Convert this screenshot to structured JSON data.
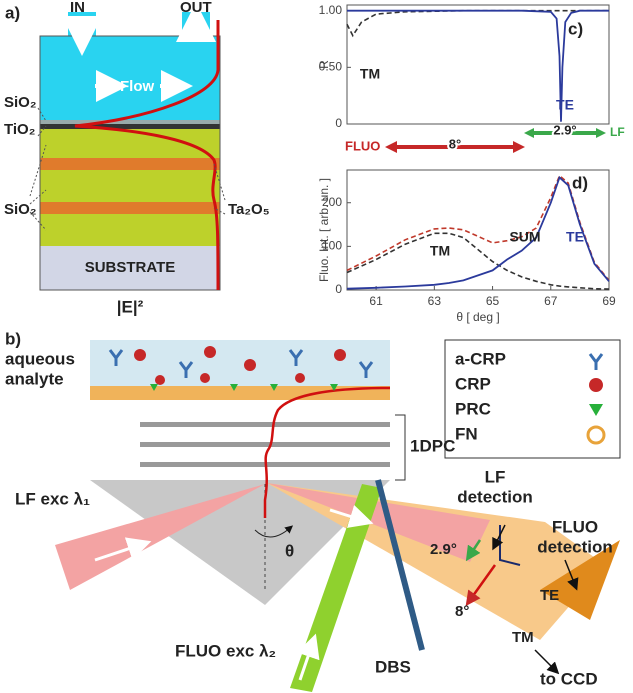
{
  "panel_a": {
    "label": "a)",
    "inlet": "IN",
    "outlet": "OUT",
    "flow": "Flow",
    "layers": {
      "top_sio2": "SiO₂",
      "tio2": "TiO₂",
      "sio2": "SiO₂",
      "ta2o5": "Ta₂O₅",
      "substrate": "SUBSTRATE"
    },
    "field": "|E|²"
  },
  "panel_b": {
    "label": "b)",
    "analyte": [
      "aqueous",
      "analyte"
    ],
    "crystal": "1DPC",
    "lf_exc": "LF exc λ₁",
    "fluo_exc": "FLUO exc λ₂",
    "angle": "θ",
    "dbs": "DBS",
    "lf_detection": [
      "LF",
      "detection"
    ],
    "fluo_detection": [
      "FLUO",
      "detection"
    ],
    "lf_angle": "2.9°",
    "fluo_angle": "8°",
    "te": "TE",
    "tm": "TM",
    "ccd": "to CCD",
    "legend": [
      "a-CRP",
      "CRP",
      "PRC",
      "FN"
    ]
  },
  "arrows": {
    "fluo": "FLUO",
    "fluo_angle": "8°",
    "lf_angle": "2.9°",
    "lf": "LF"
  },
  "chart_data": [
    {
      "type": "line",
      "label": "c)",
      "ylabel": "R",
      "x": [
        60,
        60.2,
        60.5,
        61,
        62,
        64,
        66,
        67,
        67.2,
        67.3,
        67.35,
        67.4,
        67.5,
        67.7,
        68,
        69
      ],
      "xlim": [
        60,
        69
      ],
      "ylim": [
        0,
        1.05
      ],
      "yticks": [
        0,
        {
          "value": 0.5,
          "label": "0.50"
        },
        {
          "value": 1,
          "label": "1.00"
        }
      ],
      "series": [
        {
          "name": "TM",
          "color": "#333333",
          "dashed": true,
          "values": [
            0.88,
            0.78,
            0.9,
            0.97,
            0.99,
            1,
            1,
            1,
            1,
            1,
            1,
            1,
            1,
            1,
            1,
            1
          ]
        },
        {
          "name": "TE",
          "color": "#2b3a9c",
          "dashed": false,
          "values": [
            1,
            1,
            1,
            1,
            1,
            1,
            1,
            0.99,
            0.93,
            0.6,
            0.02,
            0.5,
            0.9,
            0.98,
            1,
            1
          ]
        }
      ],
      "annotations": [
        "TM",
        "TE"
      ]
    },
    {
      "type": "line",
      "label": "d)",
      "ylabel": "Fluo. Int. [ arb. un. ]",
      "xlabel": "θ [ deg ]",
      "x": [
        60,
        61,
        62,
        63,
        63.5,
        64,
        65,
        65.5,
        66,
        66.5,
        67,
        67.3,
        67.6,
        68,
        68.5,
        69
      ],
      "xlim": [
        60,
        69
      ],
      "ylim": [
        0,
        275
      ],
      "xticks": [
        61,
        63,
        65,
        67,
        69
      ],
      "yticks": [
        0,
        100,
        200
      ],
      "series": [
        {
          "name": "TM",
          "color": "#333333",
          "dashed": true,
          "values": [
            40,
            70,
            105,
            130,
            130,
            120,
            65,
            45,
            30,
            20,
            12,
            9,
            7,
            5,
            3,
            2
          ]
        },
        {
          "name": "SUM",
          "color": "#c0392b",
          "dashed": true,
          "values": [
            45,
            78,
            115,
            140,
            142,
            138,
            108,
            113,
            122,
            142,
            212,
            262,
            245,
            155,
            63,
            22
          ]
        },
        {
          "name": "TE",
          "color": "#2b3a9c",
          "dashed": false,
          "values": [
            3,
            5,
            8,
            12,
            16,
            22,
            45,
            70,
            90,
            120,
            200,
            258,
            240,
            150,
            60,
            20
          ]
        }
      ],
      "annotations": [
        "TM",
        "SUM",
        "TE"
      ]
    }
  ]
}
